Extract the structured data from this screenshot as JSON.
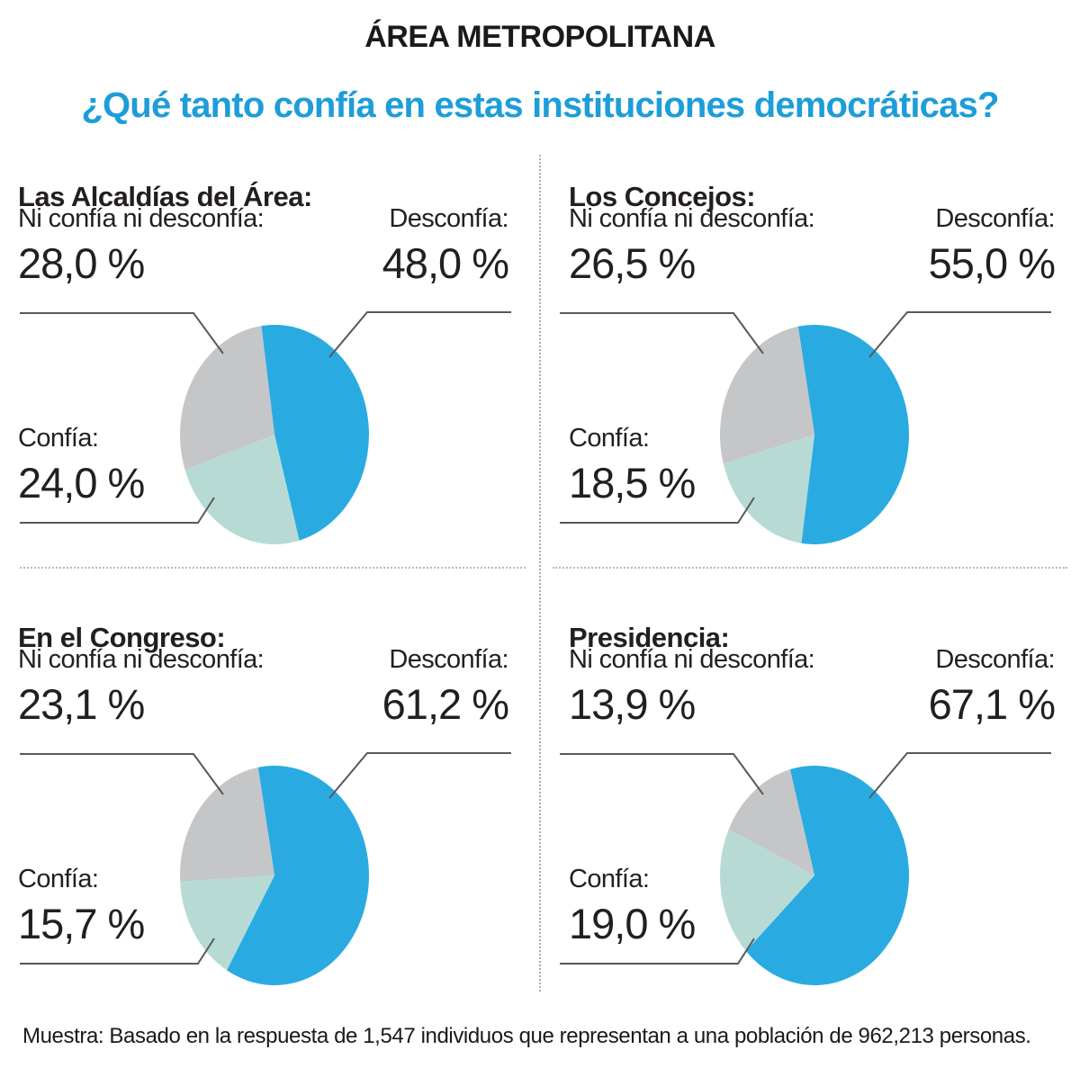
{
  "header": {
    "title": "ÁREA METROPOLITANA",
    "subtitle": "¿Qué tanto confía en estas instituciones democráticas?"
  },
  "charts": [
    {
      "institution": "Las Alcaldías del Área:",
      "neutral_label": "Ni confía ni desconfía:",
      "neutral_value": "28,0 %",
      "distrust_label": "Desconfía:",
      "distrust_value": "48,0 %",
      "trust_label": "Confía:",
      "trust_value": "24,0 %"
    },
    {
      "institution": "Los Concejos:",
      "neutral_label": "Ni confía ni desconfía:",
      "neutral_value": "26,5 %",
      "distrust_label": "Desconfía:",
      "distrust_value": "55,0 %",
      "trust_label": "Confía:",
      "trust_value": "18,5 %"
    },
    {
      "institution": "En el Congreso:",
      "neutral_label": "Ni confía ni desconfía:",
      "neutral_value": "23,1 %",
      "distrust_label": "Desconfía:",
      "distrust_value": "61,2 %",
      "trust_label": "Confía:",
      "trust_value": "15,7 %"
    },
    {
      "institution": "Presidencia:",
      "neutral_label": "Ni confía ni desconfía:",
      "neutral_value": "13,9 %",
      "distrust_label": "Desconfía:",
      "distrust_value": "67,1 %",
      "trust_label": "Confía:",
      "trust_value": "19,0 %"
    }
  ],
  "chart_data": [
    {
      "type": "pie",
      "title": "Las Alcaldías del Área:",
      "start_angle_deg": -8,
      "legend_position": "callout-labels",
      "slices": [
        {
          "label": "Desconfía",
          "value_pct": 48.0,
          "display": "48,0 %",
          "color": "#29ABE2"
        },
        {
          "label": "Confía",
          "value_pct": 24.0,
          "display": "24,0 %",
          "color": "#B7DBD4"
        },
        {
          "label": "Ni confía ni desconfía",
          "value_pct": 28.0,
          "display": "28,0 %",
          "color": "#C5C6C8"
        }
      ]
    },
    {
      "type": "pie",
      "title": "Los Concejos:",
      "start_angle_deg": -10,
      "legend_position": "callout-labels",
      "slices": [
        {
          "label": "Desconfía",
          "value_pct": 55.0,
          "display": "55,0 %",
          "color": "#29ABE2"
        },
        {
          "label": "Confía",
          "value_pct": 18.5,
          "display": "18,5 %",
          "color": "#B7DBD4"
        },
        {
          "label": "Ni confía ni desconfía",
          "value_pct": 26.5,
          "display": "26,5 %",
          "color": "#C5C6C8"
        }
      ]
    },
    {
      "type": "pie",
      "title": "En el Congreso:",
      "start_angle_deg": -10,
      "legend_position": "callout-labels",
      "slices": [
        {
          "label": "Desconfía",
          "value_pct": 61.2,
          "display": "61,2 %",
          "color": "#29ABE2"
        },
        {
          "label": "Confía",
          "value_pct": 15.7,
          "display": "15,7 %",
          "color": "#B7DBD4"
        },
        {
          "label": "Ni confía ni desconfía",
          "value_pct": 23.1,
          "display": "23,1 %",
          "color": "#C5C6C8"
        }
      ]
    },
    {
      "type": "pie",
      "title": "Presidencia:",
      "start_angle_deg": -15,
      "legend_position": "callout-labels",
      "slices": [
        {
          "label": "Desconfía",
          "value_pct": 67.1,
          "display": "67,1 %",
          "color": "#29ABE2"
        },
        {
          "label": "Confía",
          "value_pct": 19.0,
          "display": "19,0 %",
          "color": "#B7DBD4"
        },
        {
          "label": "Ni confía ni desconfía",
          "value_pct": 13.9,
          "display": "13,9 %",
          "color": "#C5C6C8"
        }
      ]
    }
  ],
  "palette": {
    "distrust_blue": "#29ABE2",
    "trust_teal": "#B7DBD4",
    "neutral_gray": "#C5C6C8",
    "subtitle_blue": "#1D9DD9",
    "leader_line": "#58595B",
    "text": "#231F20",
    "divider": "#ABADAF"
  },
  "footer": {
    "note": "Muestra: Basado en la respuesta de 1,547 individuos que representan a una población de 962,213 personas."
  }
}
